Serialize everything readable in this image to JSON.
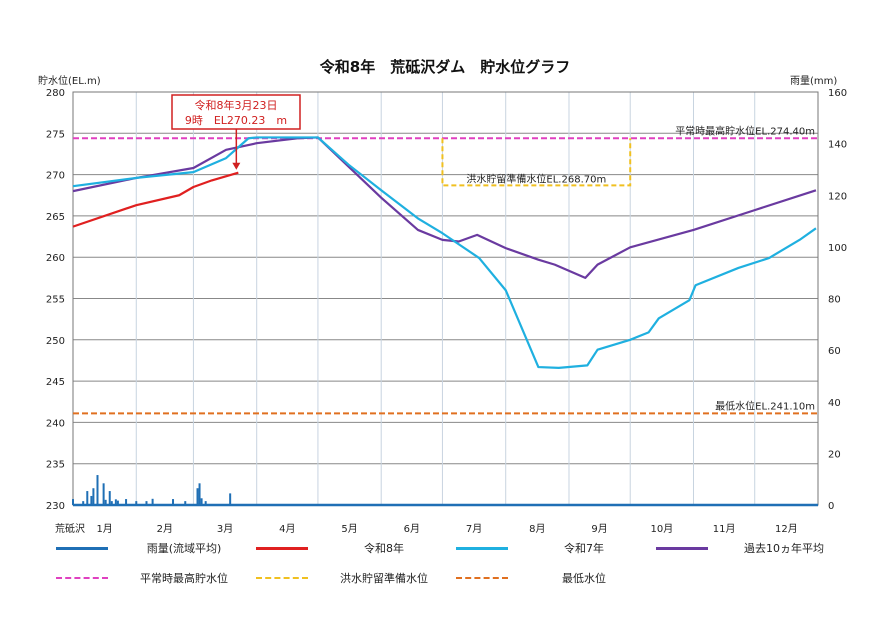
{
  "chart_data": {
    "type": "line",
    "title": "令和8年　荒砥沢ダム　貯水位グラフ",
    "ylabel": "貯水位(EL.m)",
    "y2label": "雨量(mm)",
    "station_label": "荒砥沢",
    "ylim": [
      230,
      280
    ],
    "yticks": [
      230,
      235,
      240,
      245,
      250,
      255,
      260,
      265,
      270,
      275,
      280
    ],
    "y2lim": [
      0,
      160
    ],
    "y2ticks": [
      0,
      20,
      40,
      60,
      80,
      100,
      120,
      140,
      160
    ],
    "xticks": [
      "1月",
      "2月",
      "3月",
      "4月",
      "5月",
      "6月",
      "7月",
      "8月",
      "9月",
      "10月",
      "11月",
      "12月"
    ],
    "grid": true,
    "colors": {
      "rain": "#1f6fb5",
      "r8": "#e02020",
      "r7": "#1fb0e0",
      "avg": "#6a3aa0",
      "max_level": "#e040c0",
      "flood_level": "#f0c020",
      "min_level": "#e07020"
    },
    "series": [
      {
        "name": "令和8年",
        "key": "r8",
        "points": [
          [
            "01/01",
            263.7
          ],
          [
            "02/01",
            266.3
          ],
          [
            "02/22",
            267.5
          ],
          [
            "03/01",
            268.5
          ],
          [
            "03/10",
            269.3
          ],
          [
            "03/23",
            270.23
          ]
        ]
      },
      {
        "name": "令和7年",
        "key": "r7",
        "points": [
          [
            "01/01",
            268.6
          ],
          [
            "02/01",
            269.6
          ],
          [
            "03/01",
            270.3
          ],
          [
            "03/17",
            272.0
          ],
          [
            "03/28",
            274.4
          ],
          [
            "04/01",
            274.5
          ],
          [
            "05/01",
            274.5
          ],
          [
            "05/16",
            271.2
          ],
          [
            "06/01",
            268.1
          ],
          [
            "06/19",
            264.7
          ],
          [
            "07/01",
            262.9
          ],
          [
            "07/19",
            259.9
          ],
          [
            "08/01",
            256.0
          ],
          [
            "08/17",
            246.7
          ],
          [
            "08/27",
            246.6
          ],
          [
            "09/10",
            246.9
          ],
          [
            "09/15",
            248.8
          ],
          [
            "10/01",
            250.0
          ],
          [
            "10/10",
            250.9
          ],
          [
            "10/15",
            252.6
          ],
          [
            "10/30",
            254.8
          ],
          [
            "11/02",
            256.6
          ],
          [
            "11/23",
            258.7
          ],
          [
            "12/08",
            259.9
          ],
          [
            "12/23",
            262.1
          ],
          [
            "12/31",
            263.5
          ]
        ]
      },
      {
        "name": "過去10ヵ年平均",
        "key": "avg",
        "points": [
          [
            "01/01",
            268.0
          ],
          [
            "02/01",
            269.6
          ],
          [
            "03/01",
            270.8
          ],
          [
            "03/17",
            273.0
          ],
          [
            "04/01",
            273.8
          ],
          [
            "04/21",
            274.4
          ],
          [
            "05/01",
            274.5
          ],
          [
            "06/01",
            267.2
          ],
          [
            "06/19",
            263.3
          ],
          [
            "07/01",
            262.1
          ],
          [
            "07/09",
            261.9
          ],
          [
            "07/18",
            262.7
          ],
          [
            "08/01",
            261.1
          ],
          [
            "08/17",
            259.7
          ],
          [
            "08/25",
            259.1
          ],
          [
            "09/09",
            257.5
          ],
          [
            "09/15",
            259.1
          ],
          [
            "10/01",
            261.2
          ],
          [
            "11/01",
            263.3
          ],
          [
            "12/01",
            265.7
          ],
          [
            "12/31",
            268.1
          ]
        ]
      }
    ],
    "rain": {
      "name": "雨量(流域平均)",
      "values": [
        [
          "01/01",
          2.3
        ],
        [
          "01/06",
          1.5
        ],
        [
          "01/08",
          5.4
        ],
        [
          "01/10",
          3.5
        ],
        [
          "01/11",
          6.5
        ],
        [
          "01/13",
          11.6
        ],
        [
          "01/16",
          8.4
        ],
        [
          "01/17",
          2.0
        ],
        [
          "01/19",
          5.4
        ],
        [
          "01/20",
          1.5
        ],
        [
          "01/22",
          2.2
        ],
        [
          "01/23",
          1.7
        ],
        [
          "01/27",
          2.3
        ],
        [
          "02/01",
          1.5
        ],
        [
          "02/06",
          1.5
        ],
        [
          "02/09",
          2.4
        ],
        [
          "02/19",
          2.3
        ],
        [
          "02/25",
          1.5
        ],
        [
          "03/03",
          6.5
        ],
        [
          "03/04",
          8.4
        ],
        [
          "03/05",
          2.6
        ],
        [
          "03/07",
          1.5
        ],
        [
          "03/19",
          4.5
        ]
      ]
    },
    "reference_lines": [
      {
        "name": "平常時最高貯水位",
        "value": 274.4,
        "label": "平常時最高貯水位EL.274.40m",
        "key": "max_level"
      },
      {
        "name": "洪水貯留準備水位",
        "value": 268.7,
        "label": "洪水貯留準備水位EL.268.70m",
        "key": "flood_level",
        "from": "07/01",
        "to": "10/01"
      },
      {
        "name": "最低水位",
        "value": 241.1,
        "label": "最低水位EL.241.10m",
        "key": "min_level"
      }
    ],
    "annotation": {
      "line1": "令和8年3月23日",
      "line2": "9時　EL270.23　m",
      "date": "03/23",
      "value": 270.23
    },
    "legend": [
      {
        "label": "雨量(流域平均)",
        "key": "rain",
        "style": "solid"
      },
      {
        "label": "令和8年",
        "key": "r8",
        "style": "solid"
      },
      {
        "label": "令和7年",
        "key": "r7",
        "style": "solid"
      },
      {
        "label": "過去10ヵ年平均",
        "key": "avg",
        "style": "solid"
      },
      {
        "label": "平常時最高貯水位",
        "key": "max_level",
        "style": "dashed"
      },
      {
        "label": "洪水貯留準備水位",
        "key": "flood_level",
        "style": "dashed"
      },
      {
        "label": "最低水位",
        "key": "min_level",
        "style": "dashed"
      }
    ]
  }
}
